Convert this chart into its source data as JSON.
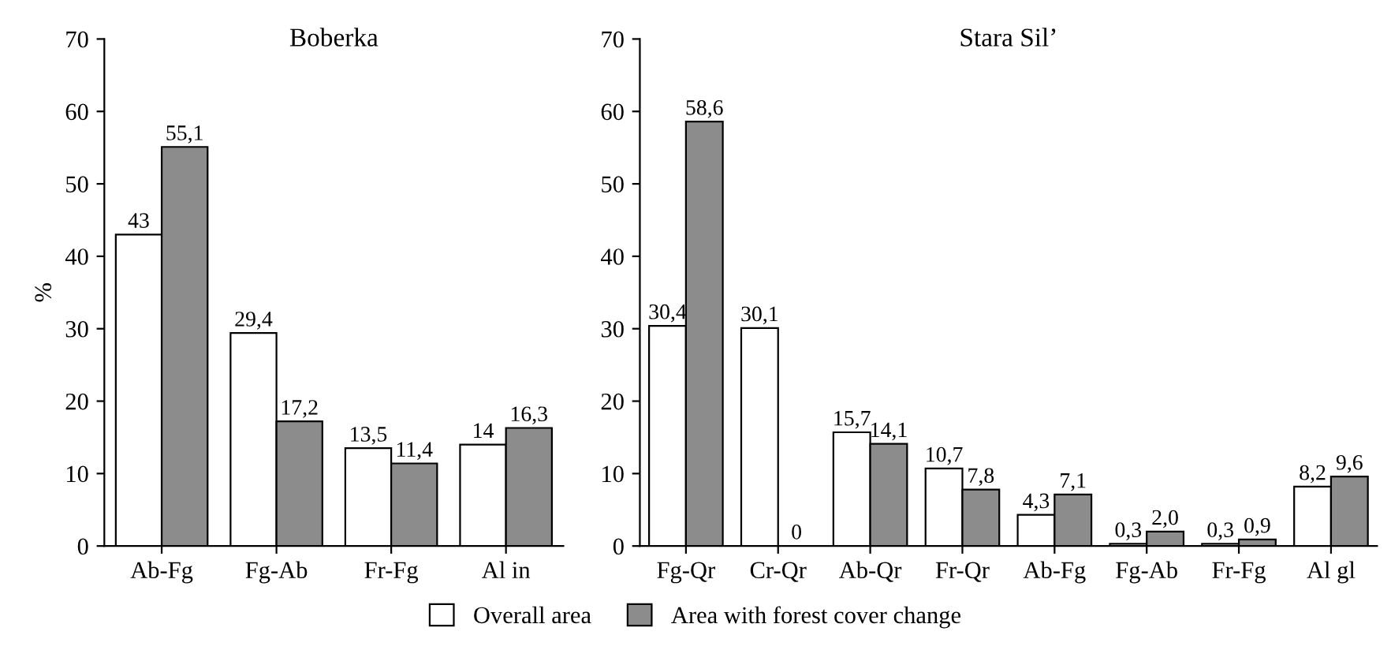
{
  "chart_data": [
    {
      "type": "bar",
      "title": "Boberka",
      "ylabel": "%",
      "categories": [
        "Ab-Fg",
        "Fg-Ab",
        "Fr-Fg",
        "Al in"
      ],
      "series": [
        {
          "color": "#ffffff",
          "values": [
            43,
            29.4,
            13.5,
            14
          ],
          "value_labels": [
            "43",
            "29,4",
            "13,5",
            "14"
          ]
        },
        {
          "color": "#8c8c8c",
          "values": [
            55.1,
            17.2,
            11.4,
            16.3
          ],
          "value_labels": [
            "55,1",
            "17,2",
            "11,4",
            "16,3"
          ]
        }
      ],
      "ylim": [
        0,
        70
      ],
      "yticks": [
        0,
        10,
        20,
        30,
        40,
        50,
        60,
        70
      ],
      "grid": false,
      "legend": false
    },
    {
      "type": "bar",
      "title": "Stara Sil’",
      "categories": [
        "Fg-Qr",
        "Cr-Qr",
        "Ab-Qr",
        "Fr-Qr",
        "Ab-Fg",
        "Fg-Ab",
        "Fr-Fg",
        "Al gl"
      ],
      "series": [
        {
          "name": "Overall area",
          "color": "#ffffff",
          "values": [
            30.4,
            30.1,
            15.7,
            10.7,
            4.3,
            0.3,
            0.3,
            8.2
          ],
          "value_labels": [
            "30,4",
            "30,1",
            "15,7",
            "10,7",
            "4,3",
            "0,3",
            "0,3",
            "8,2"
          ]
        },
        {
          "name": "Area with forest cover change",
          "color": "#8c8c8c",
          "values": [
            58.6,
            0,
            14.1,
            7.8,
            7.1,
            2.0,
            0.9,
            9.6
          ],
          "value_labels": [
            "58,6",
            "0",
            "14,1",
            "7,8",
            "7,1",
            "2,0",
            "0,9",
            "9,6"
          ]
        }
      ],
      "ylim": [
        0,
        70
      ],
      "yticks": [
        0,
        10,
        20,
        30,
        40,
        50,
        60,
        70
      ],
      "grid": false,
      "legend": "bottom"
    }
  ]
}
